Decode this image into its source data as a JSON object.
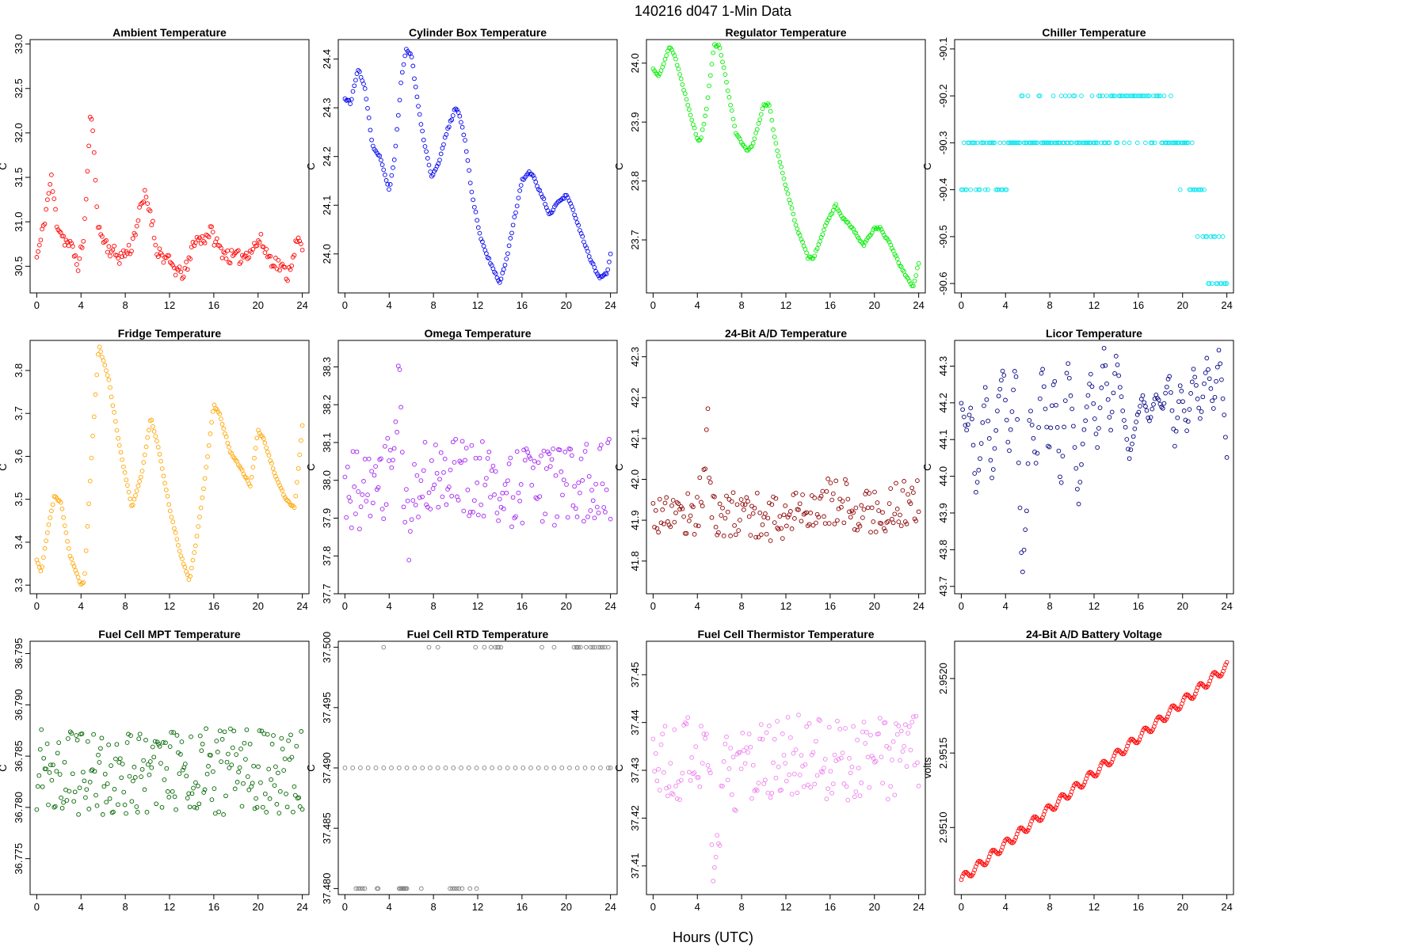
{
  "figure": {
    "title": "140216   d047   1-Min Data",
    "xlabel": "Hours (UTC)"
  },
  "chart_data": [
    {
      "type": "scatter",
      "title": "Ambient Temperature",
      "color": "#ff0000",
      "ylabel": "C",
      "xlim": [
        -0.6,
        24.6
      ],
      "ylim": [
        30.2,
        33.05
      ],
      "xticks": [
        0,
        4,
        8,
        12,
        16,
        20,
        24
      ],
      "yticks": [
        30.5,
        31.0,
        31.5,
        32.0,
        32.5,
        33.0
      ],
      "ytick_labels": [
        "30.5",
        "31.0",
        "31.5",
        "32.0",
        "32.5",
        "33.0"
      ],
      "points": 200,
      "seed": 11,
      "noise": 0.08,
      "x": [
        0,
        0.4,
        0.8,
        1.3,
        1.8,
        2.5,
        3.2,
        3.8,
        4.3,
        4.6,
        4.9,
        5.3,
        5.6,
        6.5,
        7.5,
        8.5,
        9.3,
        9.8,
        10.3,
        10.8,
        11.5,
        12.3,
        13,
        13.7,
        14.2,
        15,
        15.7,
        16.5,
        17.5,
        18.5,
        19.5,
        20.2,
        21,
        22,
        22.7,
        23.3,
        23.7,
        24
      ],
      "y": [
        30.6,
        30.8,
        31.1,
        31.5,
        31.0,
        30.8,
        30.7,
        30.5,
        30.9,
        31.6,
        32.3,
        31.5,
        30.9,
        30.7,
        30.6,
        30.7,
        31.1,
        31.3,
        31.1,
        30.7,
        30.6,
        30.5,
        30.4,
        30.5,
        30.8,
        30.8,
        30.9,
        30.7,
        30.6,
        30.6,
        30.7,
        30.8,
        30.6,
        30.5,
        30.4,
        30.7,
        30.8,
        30.65
      ]
    },
    {
      "type": "scatter",
      "title": "Cylinder Box Temperature",
      "color": "#0000ee",
      "ylabel": "C",
      "xlim": [
        -0.6,
        24.6
      ],
      "ylim": [
        23.92,
        24.44
      ],
      "xticks": [
        0,
        4,
        8,
        12,
        16,
        20,
        24
      ],
      "yticks": [
        24.0,
        24.1,
        24.2,
        24.3,
        24.4
      ],
      "ytick_labels": [
        "24.0",
        "24.1",
        "24.2",
        "24.3",
        "24.4"
      ],
      "points": 200,
      "seed": 12,
      "noise": 0.003,
      "x": [
        0,
        0.5,
        1.2,
        1.8,
        2.5,
        3.2,
        4,
        4.5,
        5.1,
        5.5,
        6,
        6.4,
        7,
        7.8,
        8.4,
        9.2,
        10,
        10.3,
        10.8,
        11.5,
        12.3,
        13,
        14,
        14.6,
        15.2,
        16,
        16.6,
        17,
        18,
        18.5,
        19,
        20,
        20.5,
        21.2,
        22,
        23,
        23.7,
        24
      ],
      "y": [
        24.32,
        24.31,
        24.38,
        24.34,
        24.22,
        24.2,
        24.13,
        24.2,
        24.36,
        24.42,
        24.41,
        24.34,
        24.25,
        24.16,
        24.18,
        24.25,
        24.3,
        24.29,
        24.24,
        24.12,
        24.03,
        23.99,
        23.94,
        23.99,
        24.06,
        24.15,
        24.17,
        24.16,
        24.11,
        24.08,
        24.1,
        24.12,
        24.1,
        24.05,
        24.0,
        23.95,
        23.96,
        24.0
      ]
    },
    {
      "type": "scatter",
      "title": "Regulator Temperature",
      "color": "#00ee00",
      "ylabel": "C",
      "xlim": [
        -0.6,
        24.6
      ],
      "ylim": [
        23.61,
        24.04
      ],
      "xticks": [
        0,
        4,
        8,
        12,
        16,
        20,
        24
      ],
      "yticks": [
        23.7,
        23.8,
        23.9,
        24.0
      ],
      "ytick_labels": [
        "23.7",
        "23.8",
        "23.9",
        "24.0"
      ],
      "points": 200,
      "seed": 13,
      "noise": 0.002,
      "x": [
        0,
        0.5,
        1,
        1.5,
        2,
        3,
        4,
        4.3,
        4.8,
        5.5,
        6,
        6.5,
        7.5,
        8.5,
        9,
        10,
        10.5,
        11,
        12,
        13,
        14,
        14.5,
        15.5,
        16.5,
        17,
        18,
        19,
        20,
        20.5,
        21.5,
        22.5,
        23.5,
        24
      ],
      "y": [
        23.99,
        23.98,
        24.0,
        24.03,
        24.01,
        23.94,
        23.87,
        23.87,
        23.92,
        24.03,
        24.03,
        23.98,
        23.88,
        23.85,
        23.86,
        23.93,
        23.93,
        23.87,
        23.79,
        23.72,
        23.67,
        23.67,
        23.72,
        23.76,
        23.74,
        23.72,
        23.69,
        23.72,
        23.72,
        23.69,
        23.65,
        23.62,
        23.66
      ]
    },
    {
      "type": "scatter",
      "title": "Chiller Temperature",
      "color": "#00e5ee",
      "ylabel": "C",
      "xlim": [
        -0.6,
        24.6
      ],
      "ylim": [
        -90.62,
        -90.08
      ],
      "xticks": [
        0,
        4,
        8,
        12,
        16,
        20,
        24
      ],
      "yticks": [
        -90.6,
        -90.5,
        -90.4,
        -90.3,
        -90.2,
        -90.1
      ],
      "ytick_labels": [
        "-90.6",
        "-90.5",
        "-90.4",
        "-90.3",
        "-90.2",
        "-90.1"
      ],
      "points": 200,
      "seed": 14,
      "quantize": 0.1,
      "x": [
        0,
        2,
        4,
        5,
        6,
        8,
        10,
        12,
        14,
        16,
        18,
        20,
        21,
        22,
        22.5,
        23,
        24
      ],
      "y": [
        -90.35,
        -90.32,
        -90.34,
        -90.28,
        -90.24,
        -90.3,
        -90.27,
        -90.28,
        -90.24,
        -90.21,
        -90.27,
        -90.32,
        -90.38,
        -90.45,
        -90.55,
        -90.58,
        -90.6
      ]
    },
    {
      "type": "scatter",
      "title": "Fridge Temperature",
      "color": "#ffa500",
      "ylabel": "C",
      "xlim": [
        -0.6,
        24.6
      ],
      "ylim": [
        3.28,
        3.87
      ],
      "xticks": [
        0,
        4,
        8,
        12,
        16,
        20,
        24
      ],
      "yticks": [
        3.3,
        3.4,
        3.5,
        3.6,
        3.7,
        3.8
      ],
      "ytick_labels": [
        "3.3",
        "3.4",
        "3.5",
        "3.6",
        "3.7",
        "3.8"
      ],
      "points": 200,
      "seed": 15,
      "noise": 0.002,
      "x": [
        0,
        0.4,
        1,
        1.6,
        2.2,
        3,
        4,
        4.3,
        5,
        5.6,
        6.5,
        7.5,
        8.6,
        9.5,
        10.3,
        11,
        12,
        13,
        13.8,
        14.4,
        15.2,
        16,
        16.5,
        17.5,
        18.5,
        19.3,
        20,
        20.5,
        21.5,
        22.5,
        23.3,
        24
      ],
      "y": [
        3.36,
        3.33,
        3.43,
        3.51,
        3.49,
        3.37,
        3.3,
        3.31,
        3.62,
        3.86,
        3.78,
        3.62,
        3.48,
        3.56,
        3.69,
        3.62,
        3.48,
        3.37,
        3.31,
        3.4,
        3.55,
        3.72,
        3.7,
        3.61,
        3.57,
        3.53,
        3.66,
        3.64,
        3.56,
        3.5,
        3.48,
        3.67
      ]
    },
    {
      "type": "scatter",
      "title": "Omega Temperature",
      "color": "#a020f0",
      "ylabel": "C",
      "xlim": [
        -0.6,
        24.6
      ],
      "ylim": [
        37.7,
        38.37
      ],
      "xticks": [
        0,
        4,
        8,
        12,
        16,
        20,
        24
      ],
      "yticks": [
        37.7,
        37.8,
        37.9,
        38.0,
        38.1,
        38.2,
        38.3
      ],
      "ytick_labels": [
        "37.7",
        "37.8",
        "37.9",
        "38.0",
        "38.1",
        "38.2",
        "38.3"
      ],
      "points": 200,
      "seed": 16,
      "noise": 0.11,
      "x": [
        0,
        3,
        4.5,
        4.9,
        5.3,
        5.7,
        6.2,
        8,
        12,
        16,
        20,
        24
      ],
      "y": [
        37.98,
        37.98,
        38.05,
        38.25,
        38.0,
        37.85,
        38.0,
        38.0,
        38.0,
        37.98,
        37.98,
        38.0
      ]
    },
    {
      "type": "scatter",
      "title": "24-Bit A/D Temperature",
      "color": "#8b0000",
      "ylabel": "C",
      "xlim": [
        -0.6,
        24.6
      ],
      "ylim": [
        41.72,
        42.34
      ],
      "xticks": [
        0,
        4,
        8,
        12,
        16,
        20,
        24
      ],
      "yticks": [
        41.8,
        41.9,
        42.0,
        42.1,
        42.2,
        42.3
      ],
      "ytick_labels": [
        "41.8",
        "41.9",
        "42.0",
        "42.1",
        "42.2",
        "42.3"
      ],
      "points": 200,
      "seed": 17,
      "noise": 0.06,
      "x": [
        0,
        4,
        4.6,
        4.9,
        5.2,
        5.6,
        8,
        12,
        15,
        16,
        20,
        24
      ],
      "y": [
        41.92,
        41.92,
        42.0,
        42.18,
        41.95,
        41.9,
        41.92,
        41.9,
        41.95,
        41.95,
        41.92,
        41.95
      ]
    },
    {
      "type": "scatter",
      "title": "Licor Temperature",
      "color": "#000080",
      "ylabel": "C",
      "xlim": [
        -0.6,
        24.6
      ],
      "ylim": [
        43.68,
        44.37
      ],
      "xticks": [
        0,
        4,
        8,
        12,
        16,
        20,
        24
      ],
      "yticks": [
        43.7,
        43.8,
        43.9,
        44.0,
        44.1,
        44.2,
        44.3
      ],
      "ytick_labels": [
        "43.7",
        "43.8",
        "43.9",
        "44.0",
        "44.1",
        "44.2",
        "44.3"
      ],
      "points": 200,
      "seed": 18,
      "noise": 0.005,
      "x": [
        0,
        0.5,
        0.9,
        1.3,
        1.7,
        2.2,
        2.8,
        3.3,
        3.8,
        4.3,
        4.9,
        5.5,
        5.9,
        6.2,
        6.8,
        7.3,
        7.9,
        8.4,
        9,
        9.6,
        10.1,
        10.6,
        11,
        11.7,
        12.3,
        12.9,
        13.5,
        14,
        14.6,
        15.2,
        15.8,
        16.4,
        17,
        17.6,
        18.2,
        18.8,
        19.3,
        19.8,
        20.4,
        21,
        21.6,
        22.2,
        22.8,
        23.3,
        23.8,
        24
      ],
      "y": [
        44.2,
        44.12,
        44.2,
        43.95,
        44.05,
        44.25,
        43.98,
        44.2,
        44.3,
        44.05,
        44.32,
        43.72,
        43.9,
        44.2,
        44.02,
        44.32,
        44.05,
        44.28,
        43.96,
        44.32,
        44.15,
        43.92,
        44.1,
        44.28,
        44.08,
        44.35,
        44.12,
        44.33,
        44.18,
        44.05,
        44.15,
        44.22,
        44.15,
        44.22,
        44.18,
        44.28,
        44.08,
        44.25,
        44.12,
        44.3,
        44.15,
        44.32,
        44.18,
        44.35,
        44.15,
        44.05
      ]
    },
    {
      "type": "scatter",
      "title": "Fuel Cell MPT Temperature",
      "color": "#006400",
      "ylabel": "C",
      "xlim": [
        -0.6,
        24.6
      ],
      "ylim": [
        36.7715,
        36.7962
      ],
      "xticks": [
        0,
        4,
        8,
        12,
        16,
        20,
        24
      ],
      "yticks": [
        36.775,
        36.78,
        36.785,
        36.79,
        36.795
      ],
      "ytick_labels": [
        "36.775",
        "36.780",
        "36.785",
        "36.790",
        "36.795"
      ],
      "points": 230,
      "seed": 19,
      "noise": 0.0042,
      "x": [
        0,
        24
      ],
      "y": [
        36.7835,
        36.7835
      ]
    },
    {
      "type": "scatter",
      "title": "Fuel Cell RTD Temperature",
      "color": "#7f7f7f",
      "ylabel": "C",
      "xlim": [
        -0.6,
        24.6
      ],
      "ylim": [
        37.4795,
        37.5005
      ],
      "xticks": [
        0,
        4,
        8,
        12,
        16,
        20,
        24
      ],
      "yticks": [
        37.48,
        37.485,
        37.49,
        37.495,
        37.5
      ],
      "ytick_labels": [
        "37.480",
        "37.485",
        "37.490",
        "37.495",
        "37.500"
      ],
      "levels": [
        {
          "y": 37.49,
          "x": [
            0,
            0.7,
            1.4,
            2.1,
            2.8,
            3.5,
            4.2,
            4.9,
            5.6,
            6.3,
            7.0,
            7.7,
            8.4,
            9.1,
            9.8,
            10.5,
            11.2,
            11.9,
            12.6,
            13.3,
            14.0,
            14.7,
            15.4,
            16.1,
            16.8,
            17.5,
            18.2,
            18.9,
            19.6,
            20.3,
            21.0,
            21.7,
            22.4,
            23.1,
            23.8,
            24
          ]
        },
        {
          "y": 37.48,
          "x": [
            1.0,
            1.2,
            1.4,
            1.6,
            1.8,
            2.9,
            3.0,
            4.9,
            5.0,
            5.1,
            5.2,
            5.3,
            5.4,
            5.5,
            5.6,
            6.9,
            9.5,
            9.7,
            9.9,
            10.1,
            10.3,
            10.6,
            11.3,
            11.9
          ]
        },
        {
          "y": 37.5,
          "x": [
            3.5,
            7.6,
            8.4,
            11.8,
            12.6,
            13.2,
            13.6,
            13.8,
            13.9,
            14.1,
            17.8,
            18.9,
            20.7,
            20.9,
            21.0,
            21.1,
            21.3,
            21.8,
            22.2,
            22.4,
            22.6,
            22.9,
            23.1,
            23.3,
            23.5,
            23.8
          ]
        }
      ]
    },
    {
      "type": "scatter",
      "title": "Fuel Cell Thermistor Temperature",
      "color": "#ee82ee",
      "ylabel": "C",
      "xlim": [
        -0.6,
        24.6
      ],
      "ylim": [
        37.404,
        37.457
      ],
      "xticks": [
        0,
        4,
        8,
        12,
        16,
        20,
        24
      ],
      "yticks": [
        37.41,
        37.42,
        37.43,
        37.44,
        37.45
      ],
      "ytick_labels": [
        "37.41",
        "37.42",
        "37.43",
        "37.44",
        "37.45"
      ],
      "points": 200,
      "seed": 20,
      "noise": 0.009,
      "x": [
        0,
        2,
        4,
        5,
        5.6,
        6.2,
        8,
        12,
        14,
        16,
        20,
        24
      ],
      "y": [
        37.432,
        37.43,
        37.435,
        37.43,
        37.41,
        37.428,
        37.43,
        37.432,
        37.435,
        37.432,
        37.432,
        37.434
      ]
    },
    {
      "type": "scatter",
      "title": "24-Bit A/D Battery Voltage",
      "color": "#ff0000",
      "ylabel": "volts",
      "xlim": [
        -0.6,
        24.6
      ],
      "ylim": [
        2.95055,
        2.95225
      ],
      "xticks": [
        0,
        4,
        8,
        12,
        16,
        20,
        24
      ],
      "yticks": [
        2.951,
        2.9515,
        2.952
      ],
      "ytick_labels": [
        "2.9510",
        "2.9515",
        "2.9520"
      ],
      "points": 220,
      "seed": 21,
      "noise": 0.0,
      "wave": 3e-05,
      "wave_period": 1.25,
      "x": [
        0,
        24
      ],
      "y": [
        2.95065,
        2.95208
      ]
    }
  ]
}
